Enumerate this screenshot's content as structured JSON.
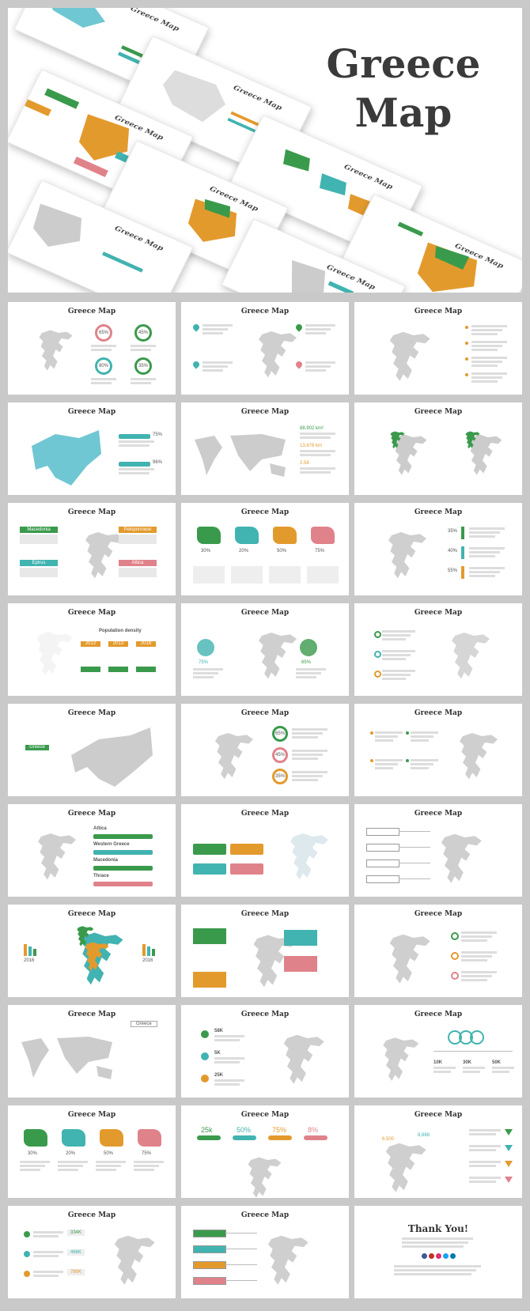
{
  "hero": {
    "title_line1": "Greece",
    "title_line2": "Map"
  },
  "slide_title": "Greece Map",
  "colors": {
    "green": "#3a9a4c",
    "teal": "#41b3b0",
    "orange": "#e39a2d",
    "pink": "#e0828a",
    "gray_map": "#cfcfcf",
    "europe_blue": "#6fc7d3"
  },
  "slides": [
    {
      "kind": "donuts",
      "values": [
        "65%",
        "45%",
        "80%",
        "35%"
      ]
    },
    {
      "kind": "pins"
    },
    {
      "kind": "list-right"
    },
    {
      "kind": "europe-blue",
      "values": [
        "75%",
        "96%"
      ]
    },
    {
      "kind": "world",
      "values": [
        "88,902 km²",
        "13,676 km",
        "2.58"
      ]
    },
    {
      "kind": "two-maps"
    },
    {
      "kind": "labels-four",
      "labels": [
        "Macedonia",
        "Peloponnese",
        "Epirus",
        "Attica"
      ]
    },
    {
      "kind": "regions-four",
      "values": [
        "30%",
        "20%",
        "50%",
        "75%"
      ]
    },
    {
      "kind": "map-bars",
      "values": [
        "35%",
        "40%",
        "55%"
      ]
    },
    {
      "kind": "outline-pop",
      "label": "Population density",
      "values": [
        "2012",
        "2013",
        "2018"
      ]
    },
    {
      "kind": "two-pies",
      "values": [
        "75%",
        "65%"
      ]
    },
    {
      "kind": "pin-list"
    },
    {
      "kind": "europe-gray",
      "label": "Greece"
    },
    {
      "kind": "circle-list",
      "values": [
        "65%",
        "45%",
        "35%"
      ]
    },
    {
      "kind": "dots"
    },
    {
      "kind": "progress",
      "labels": [
        "Attica",
        "Western Greece",
        "Macedonia",
        "Thrace"
      ]
    },
    {
      "kind": "tags"
    },
    {
      "kind": "callouts"
    },
    {
      "kind": "color-map",
      "values": [
        "2016",
        "2016"
      ]
    },
    {
      "kind": "callouts2"
    },
    {
      "kind": "rings"
    },
    {
      "kind": "world2",
      "label": "Greece"
    },
    {
      "kind": "icons-stats",
      "values": [
        "58K",
        "5K",
        "25K"
      ]
    },
    {
      "kind": "rings-timeline",
      "values": [
        "10K",
        "30K",
        "50K"
      ]
    },
    {
      "kind": "regions-four-b",
      "values": [
        "30%",
        "20%",
        "50%",
        "75%"
      ]
    },
    {
      "kind": "top-stats",
      "values": [
        "25k",
        "50%",
        "75%",
        "8%"
      ]
    },
    {
      "kind": "triangles",
      "values": [
        "6,500",
        "8,888"
      ]
    },
    {
      "kind": "values-list",
      "values": [
        "334K",
        "466K",
        "780K"
      ]
    },
    {
      "kind": "labels-left"
    },
    {
      "kind": "thanks",
      "title": "Thank You!"
    }
  ]
}
